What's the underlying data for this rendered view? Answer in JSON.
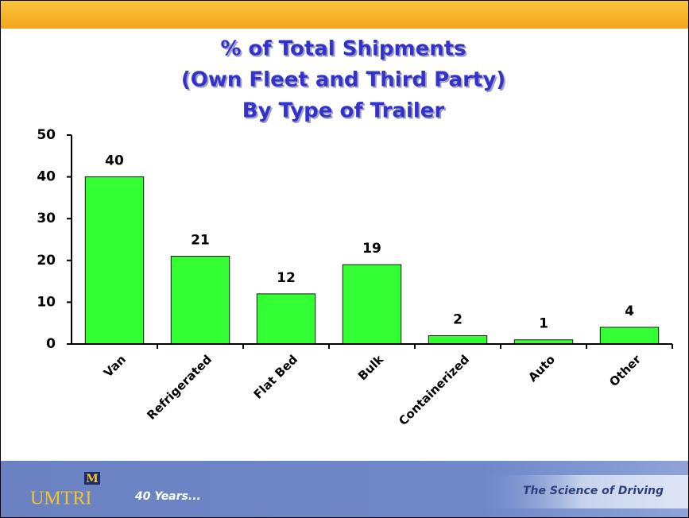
{
  "chart_data": {
    "type": "bar",
    "title": [
      "% of Total Shipments",
      "(Own Fleet and Third Party)",
      "By Type of Trailer"
    ],
    "categories": [
      "Van",
      "Refrigerated",
      "Flat Bed",
      "Bulk",
      "Containerized",
      "Auto",
      "Other"
    ],
    "values": [
      40,
      21,
      12,
      19,
      2,
      1,
      4
    ],
    "color": "#33ff33",
    "ylim": [
      0,
      50
    ],
    "yticks": [
      0,
      10,
      20,
      30,
      40,
      50
    ],
    "grid": false
  },
  "footer": {
    "logo_letter": "M",
    "logo": "UMTRI",
    "tagline": "40 Years...",
    "slogan": "The Science of Driving"
  }
}
